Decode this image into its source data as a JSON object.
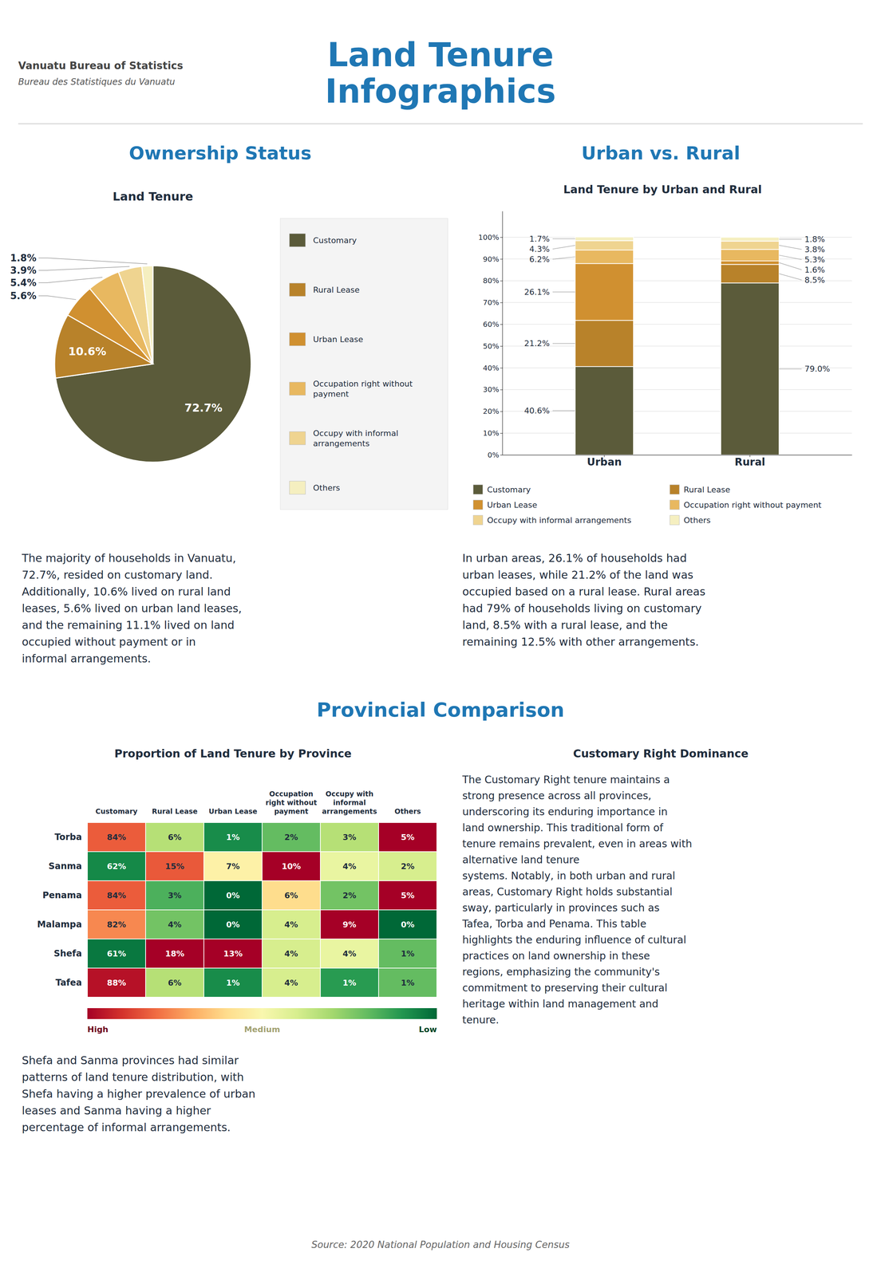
{
  "title": "Land Tenure\nInfographics",
  "subtitle": "Vanuatu Bureau of Statistics",
  "annotations": [
    "Bureau des Statistiques du Vanuatu",
    "Ownership Status",
    "Urban vs. Rural",
    "The majority of households in Vanuatu,\n72.7%, resided on customary land.\nAdditionally, 10.6% lived on rural land\nleases, 5.6% lived on urban land leases,\nand the remaining 11.1% lived on land\noccupied without payment or in\ninformal arrangements.",
    "In urban areas, 26.1% of households had\nurban leases, while 21.2% of the land was\noccupied based on a rural lease. Rural areas\nhad 79% of households living on customary\nland, 8.5% with a rural lease, and the\nremaining 12.5% with other arrangements.",
    "Provincial Comparison",
    "Shefa and Sanma provinces had similar\npatterns of land tenure distribution, with\nShefa having a higher prevalence of urban\nleases and Sanma having a higher\npercentage of informal arrangements.",
    "Customary Right Dominance",
    "The Customary Right tenure maintains a\nstrong presence across all provinces,\nunderscoring its enduring importance in\nland ownership. This traditional form of\ntenure remains prevalent, even in areas with\nalternative land tenure\nsystems. Notably, in both urban and rural\nareas, Customary Right holds substantial\nsway, particularly in provinces such as\nTafea, Torba and Penama. This table\nhighlights the enduring influence of cultural\npractices on land ownership in these\nregions, emphasizing the community's\ncommitment to preserving their cultural\nheritage within land management and\ntenure.",
    "Source: 2020 National Population and Housing Census"
  ],
  "chart_data": [
    {
      "type": "pie",
      "title": "Land Tenure",
      "categories": [
        "Customary",
        "Rural Lease",
        "Urban Lease",
        "Occupation right without\npayment",
        "Occupy with informal\narrangements",
        "Others"
      ],
      "values": [
        72.7,
        10.6,
        5.6,
        5.4,
        3.9,
        1.8
      ],
      "value_labels": [
        "72.7%",
        "10.6%",
        "5.6%",
        "5.4%",
        "3.9%",
        "1.8%"
      ],
      "colors": [
        "#5B5B3A",
        "#B8822A",
        "#D09030",
        "#E8B860",
        "#EFD490",
        "#F5EFC0"
      ],
      "data_labels": true,
      "legend": "right"
    },
    {
      "type": "bar",
      "title": "Land Tenure by Urban and Rural",
      "categories": [
        "Urban",
        "Rural"
      ],
      "series": [
        {
          "name": "Customary",
          "color": "#5B5B3A",
          "values": [
            40.6,
            79.0
          ],
          "value_labels": [
            "40.6%",
            "79.0%"
          ]
        },
        {
          "name": "Rural Lease",
          "color": "#B8822A",
          "values": [
            21.2,
            8.5
          ],
          "value_labels": [
            "21.2%",
            "8.5%"
          ]
        },
        {
          "name": "Urban Lease",
          "color": "#D09030",
          "values": [
            26.1,
            1.6
          ],
          "value_labels": [
            "26.1%",
            "1.6%"
          ]
        },
        {
          "name": "Occupation right without payment",
          "color": "#E8B860",
          "values": [
            6.2,
            5.3
          ],
          "value_labels": [
            "6.2%",
            "5.3%"
          ]
        },
        {
          "name": "Occupy with informal arrangements",
          "color": "#EFD490",
          "values": [
            4.3,
            3.8
          ],
          "value_labels": [
            "4.3%",
            "3.8%"
          ]
        },
        {
          "name": "Others",
          "color": "#F5EFC0",
          "values": [
            1.7,
            1.8
          ],
          "value_labels": [
            "1.7%",
            "1.8%"
          ]
        }
      ],
      "stacked": true,
      "data_labels": true,
      "ylim": [
        0,
        112
      ],
      "yticks": [
        {
          "value": 0,
          "label": "0%"
        },
        {
          "value": 10,
          "label": "10%"
        },
        {
          "value": 20,
          "label": "20%"
        },
        {
          "value": 30,
          "label": "30%"
        },
        {
          "value": 40,
          "label": "40%"
        },
        {
          "value": 50,
          "label": "50%"
        },
        {
          "value": 60,
          "label": "60%"
        },
        {
          "value": 70,
          "label": "70%"
        },
        {
          "value": 80,
          "label": "80%"
        },
        {
          "value": 90,
          "label": "90%"
        },
        {
          "value": 100,
          "label": "100%"
        }
      ],
      "grid": true,
      "legend": "bottom"
    },
    {
      "type": "heatmap",
      "title": "Proportion of Land Tenure by Province",
      "x": [
        "Customary",
        "Rural Lease",
        "Urban Lease",
        "Occupation right without payment",
        "Occupy with informal arrangements",
        "Others"
      ],
      "y": [
        "Torba",
        "Sanma",
        "Penama",
        "Malampa",
        "Shefa",
        "Tafea"
      ],
      "values": [
        [
          84,
          6,
          1,
          2,
          3,
          5
        ],
        [
          62,
          15,
          7,
          10,
          4,
          2
        ],
        [
          84,
          3,
          0,
          6,
          2,
          5
        ],
        [
          82,
          4,
          0,
          4,
          9,
          0
        ],
        [
          61,
          18,
          13,
          4,
          4,
          1
        ],
        [
          88,
          6,
          1,
          4,
          1,
          1
        ]
      ],
      "value_labels": [
        [
          "84%",
          "6%",
          "1%",
          "2%",
          "3%",
          "5%"
        ],
        [
          "62%",
          "15%",
          "7%",
          "10%",
          "4%",
          "2%"
        ],
        [
          "84%",
          "3%",
          "0%",
          "6%",
          "2%",
          "5%"
        ],
        [
          "82%",
          "4%",
          "0%",
          "4%",
          "9%",
          "0%"
        ],
        [
          "61%",
          "18%",
          "13%",
          "4%",
          "4%",
          "1%"
        ],
        [
          "88%",
          "6%",
          "1%",
          "4%",
          "1%",
          "1%"
        ]
      ],
      "color_ranges": [
        [
          60,
          89
        ],
        [
          0,
          18
        ],
        [
          0,
          13
        ],
        [
          0,
          10
        ],
        [
          0,
          9
        ],
        [
          0,
          5
        ]
      ],
      "colorbar_labels": [
        "High",
        "Medium",
        "Low"
      ],
      "data_labels": true
    }
  ]
}
